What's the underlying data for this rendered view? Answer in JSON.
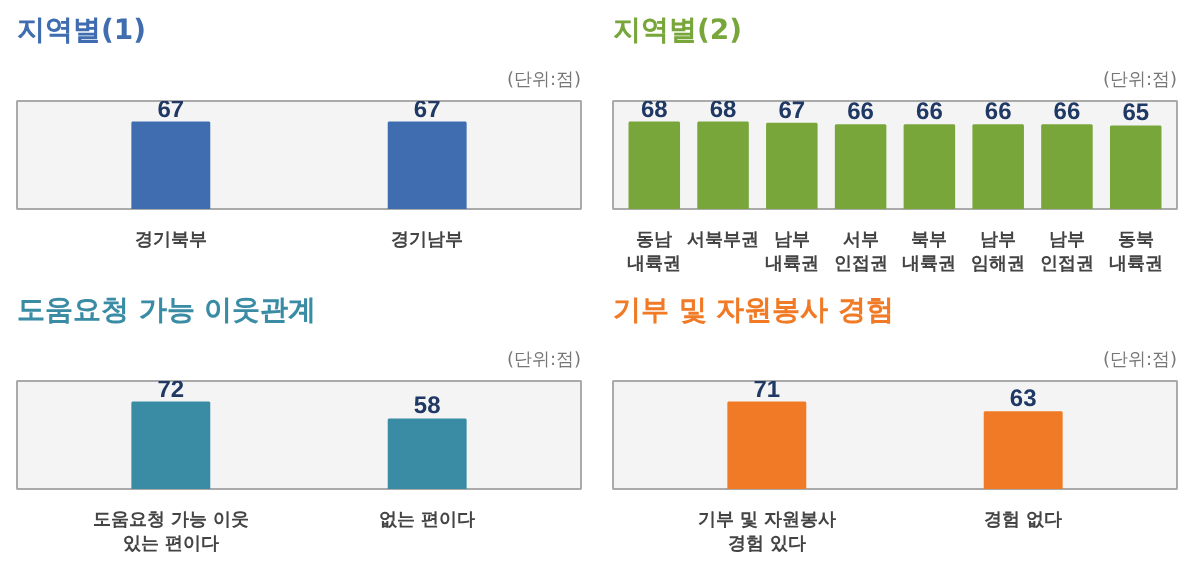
{
  "chart_data": [
    {
      "type": "bar",
      "title": "지역별(1)",
      "annotations": [
        "(단위:점)"
      ],
      "categories": [
        "경기북부",
        "경기남부"
      ],
      "values": [
        67,
        67
      ],
      "color": "#3f6db0",
      "data_labels": true,
      "tick_labels": "x",
      "grid": false
    },
    {
      "type": "bar",
      "title": "지역별(2)",
      "annotations": [
        "(단위:점)"
      ],
      "categories": [
        "동남\n내륙권",
        "서북부권",
        "남부\n내륙권",
        "서부\n인접권",
        "북부\n내륙권",
        "남부\n임해권",
        "남부\n인접권",
        "동북\n내륙권"
      ],
      "values": [
        68,
        68,
        67,
        66,
        66,
        66,
        66,
        65
      ],
      "color": "#79a63a",
      "data_labels": true,
      "tick_labels": "x",
      "grid": false
    },
    {
      "type": "bar",
      "title": "도움요청 가능 이웃관계",
      "annotations": [
        "(단위:점)"
      ],
      "categories": [
        "도움요청 가능 이웃\n있는 편이다",
        "없는 편이다"
      ],
      "values": [
        72,
        58
      ],
      "color": "#3a8ca5",
      "data_labels": true,
      "tick_labels": "x",
      "grid": false
    },
    {
      "type": "bar",
      "title": "기부 및 자원봉사 경험",
      "annotations": [
        "(단위:점)"
      ],
      "categories": [
        "기부 및 자원봉사\n경험 있다",
        "경험 없다"
      ],
      "values": [
        71,
        63
      ],
      "color": "#f07a25",
      "data_labels": true,
      "tick_labels": "x",
      "grid": false
    }
  ]
}
